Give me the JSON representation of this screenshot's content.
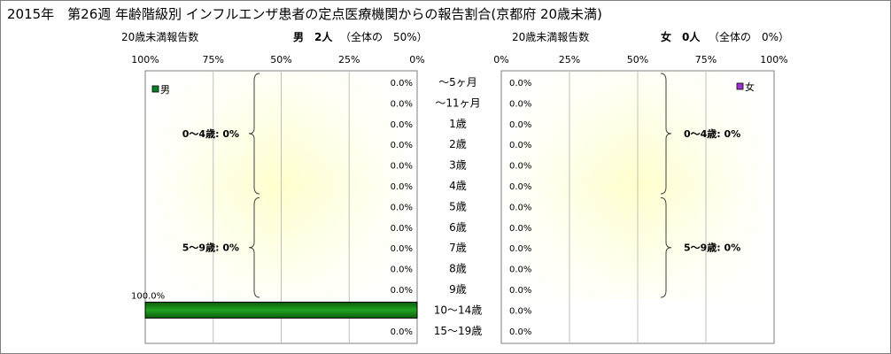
{
  "title": "2015年　第26週 年齢階級別 インフルエンザ患者の定点医療機関からの報告割合(京都府 20歳未満)",
  "left": {
    "subtitle": "20歳未満報告数",
    "sex_label": "男　2人",
    "share_label": "（全体の　50%）",
    "legend": "男",
    "legend_color": "#00802b",
    "bracket_labels": [
      "0～4歳: 0%",
      "5～9歳: 0%"
    ]
  },
  "right": {
    "subtitle": "20歳未満報告数",
    "sex_label": "女　0人",
    "share_label": "（全体の　0%）",
    "legend": "女",
    "legend_color": "#9933cc",
    "bracket_labels": [
      "0～4歳: 0%",
      "5～9歳: 0%"
    ]
  },
  "chart_data": [
    {
      "type": "bar",
      "orientation": "horizontal",
      "direction": "right-to-left",
      "series": [
        {
          "name": "男",
          "values": [
            0,
            0,
            0,
            0,
            0,
            0,
            0,
            0,
            0,
            0,
            0,
            100,
            0
          ]
        }
      ],
      "categories": [
        "～5ヶ月",
        "～11ヶ月",
        "1歳",
        "2歳",
        "3歳",
        "4歳",
        "5歳",
        "6歳",
        "7歳",
        "8歳",
        "9歳",
        "10～14歳",
        "15～19歳"
      ],
      "value_labels": [
        "0.0%",
        "0.0%",
        "0.0%",
        "0.0%",
        "0.0%",
        "0.0%",
        "0.0%",
        "0.0%",
        "0.0%",
        "0.0%",
        "0.0%",
        "100.0%",
        "0.0%"
      ],
      "ticks": [
        "100%",
        "75%",
        "50%",
        "25%",
        "0%"
      ],
      "xlim": [
        0,
        100
      ],
      "grid": true,
      "shaded_range": "～5ヶ月 to 9歳",
      "legend_position": "top-left"
    },
    {
      "type": "bar",
      "orientation": "horizontal",
      "direction": "left-to-right",
      "series": [
        {
          "name": "女",
          "values": [
            0,
            0,
            0,
            0,
            0,
            0,
            0,
            0,
            0,
            0,
            0,
            0,
            0
          ]
        }
      ],
      "categories": [
        "～5ヶ月",
        "～11ヶ月",
        "1歳",
        "2歳",
        "3歳",
        "4歳",
        "5歳",
        "6歳",
        "7歳",
        "8歳",
        "9歳",
        "10～14歳",
        "15～19歳"
      ],
      "value_labels": [
        "0.0%",
        "0.0%",
        "0.0%",
        "0.0%",
        "0.0%",
        "0.0%",
        "0.0%",
        "0.0%",
        "0.0%",
        "0.0%",
        "0.0%",
        "0.0%",
        "0.0%"
      ],
      "ticks": [
        "0%",
        "25%",
        "50%",
        "75%",
        "100%"
      ],
      "xlim": [
        0,
        100
      ],
      "grid": true,
      "shaded_range": "～5ヶ月 to 9歳",
      "legend_position": "top-right"
    }
  ]
}
